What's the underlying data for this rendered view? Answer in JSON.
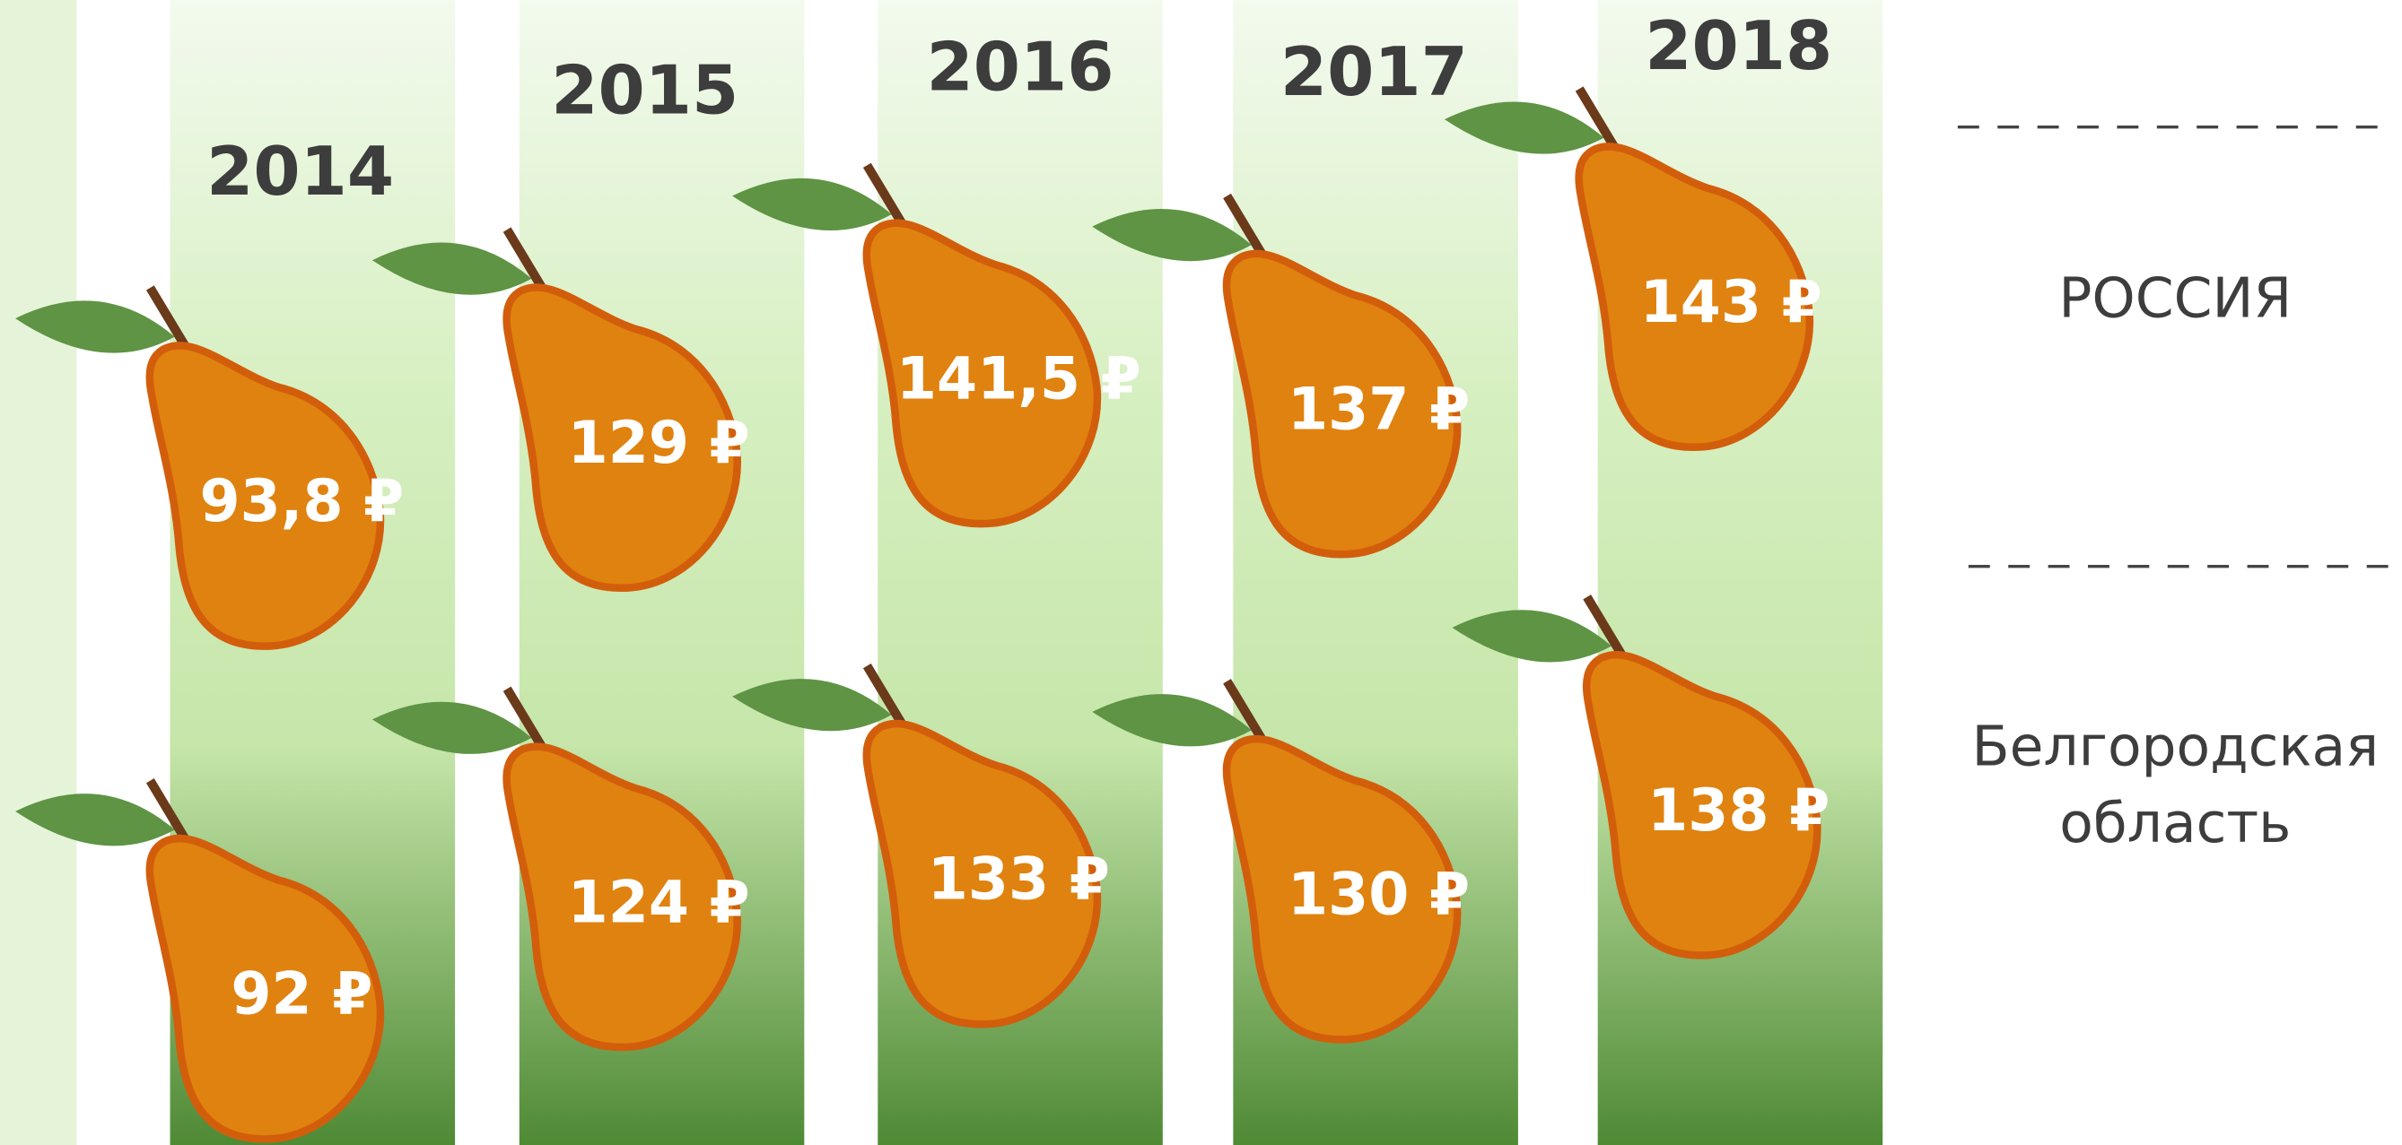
{
  "chart_data": {
    "type": "pictorial",
    "categories": [
      "2014",
      "2015",
      "2016",
      "2017",
      "2018"
    ],
    "series": [
      {
        "name": "РОССИЯ",
        "color": "#e0820f",
        "values": [
          93.8,
          129,
          141.5,
          137,
          143
        ],
        "value_labels": [
          "93,8 ₽",
          "129 ₽",
          "141,5 ₽",
          "137 ₽",
          "143 ₽"
        ]
      },
      {
        "name": "Белгородская область",
        "color": "#e0820f",
        "values": [
          92,
          124,
          133,
          130,
          138
        ],
        "value_labels": [
          "92 ₽",
          "124 ₽",
          "133 ₽",
          "130 ₽",
          "138 ₽"
        ]
      }
    ]
  }
}
